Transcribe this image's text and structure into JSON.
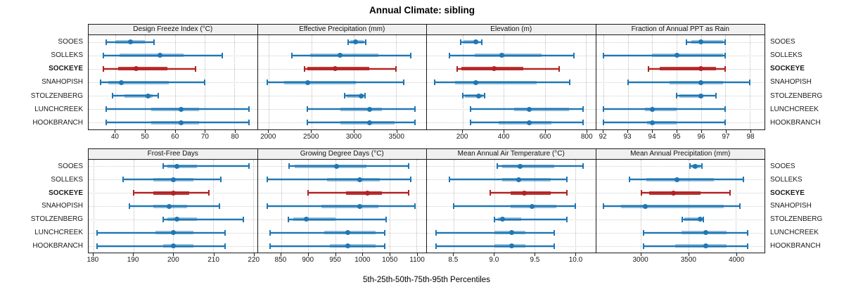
{
  "title": "Annual Climate: sibling",
  "caption": "5th-25th-50th-75th-95th Percentiles",
  "colors": {
    "blue": "#1f77b4",
    "blue_rgb": "31,119,180",
    "red": "#b22222",
    "red_rgb": "178,34,34",
    "strip_bg": "#f0f0f0",
    "border": "#1a1a1a"
  },
  "chart_data": {
    "type": "dotplot",
    "percentiles": [
      "5th",
      "25th",
      "50th",
      "75th",
      "95th"
    ],
    "sites": [
      "SOOES",
      "SOLLEKS",
      "SOCKEYE",
      "SNAHOPISH",
      "STOLZENBERG",
      "LUNCHCREEK",
      "HOOKBRANCH"
    ],
    "highlight_site": "SOCKEYE",
    "grids": [
      {
        "panels": [
          {
            "title": "Design Freeze Index (°C)",
            "range": [
              31,
              87.6
            ],
            "ticks": [
              40,
              50,
              60,
              70,
              80
            ],
            "series": [
              [
                36.8,
                40,
                45,
                50,
                53
              ],
              [
                36,
                41.5,
                55,
                63,
                76
              ],
              [
                36,
                41,
                47,
                57.5,
                67
              ],
              [
                35,
                37.5,
                42,
                58,
                70
              ],
              [
                39,
                43,
                51,
                52.5,
                54.5
              ],
              [
                37,
                52,
                62,
                68,
                85
              ],
              [
                37,
                52,
                62,
                68,
                85
              ]
            ]
          },
          {
            "title": "Effective Precipitation (mm)",
            "range": [
              1870,
              3855
            ],
            "ticks": [
              2000,
              2500,
              3000,
              3500
            ],
            "series": [
              [
                2935,
                2960,
                3025,
                3115,
                3140
              ],
              [
                2270,
                2490,
                2840,
                3295,
                3670
              ],
              [
                2425,
                2455,
                2780,
                3180,
                3500
              ],
              [
                1985,
                2180,
                2455,
                3030,
                3590
              ],
              [
                2895,
                2920,
                3090,
                3115,
                3135
              ],
              [
                2455,
                2840,
                3190,
                3330,
                3725
              ],
              [
                2455,
                2840,
                3190,
                3480,
                3725
              ]
            ]
          },
          {
            "title": "Elevation (m)",
            "range": [
              27,
              845
            ],
            "ticks": [
              200,
              400,
              600,
              800
            ],
            "series": [
              [
                190,
                205,
                265,
                278,
                295
              ],
              [
                135,
                260,
                390,
                585,
                740
              ],
              [
                175,
                195,
                352,
                495,
                668
              ],
              [
                65,
                165,
                263,
                560,
                720
              ],
              [
                200,
                212,
                278,
                296,
                307
              ],
              [
                240,
                450,
                525,
                718,
                785
              ],
              [
                240,
                375,
                525,
                632,
                785
              ]
            ]
          },
          {
            "title": "Fraction of Annual PPT as Rain",
            "range": [
              91.7,
              98.6
            ],
            "ticks": [
              92,
              93,
              94,
              95,
              96,
              97,
              98
            ],
            "series": [
              [
                95.4,
                95.6,
                96,
                96.9,
                97
              ],
              [
                92,
                94,
                95,
                96.9,
                97
              ],
              [
                93.85,
                94.3,
                96,
                96.6,
                97
              ],
              [
                93,
                94.7,
                96,
                96.9,
                98
              ],
              [
                95,
                95.1,
                96,
                96.1,
                96.6
              ],
              [
                92,
                93.7,
                94,
                95,
                97
              ],
              [
                92,
                93.8,
                94,
                95,
                97
              ]
            ]
          }
        ]
      },
      {
        "panels": [
          {
            "title": "Frost-Free Days",
            "range": [
              178.8,
              221
            ],
            "ticks": [
              180,
              190,
              200,
              210,
              220
            ],
            "series": [
              [
                197.5,
                198.5,
                201,
                206,
                219
              ],
              [
                187.5,
                195,
                200,
                205,
                212
              ],
              [
                190,
                195,
                200,
                204,
                209
              ],
              [
                189,
                195,
                199,
                203.5,
                211.5
              ],
              [
                197.5,
                198.5,
                201,
                206,
                217.5
              ],
              [
                181,
                195.5,
                200,
                205,
                213
              ],
              [
                181,
                197.5,
                200,
                205,
                213
              ]
            ]
          },
          {
            "title": "Growing Degree Days (°C)",
            "range": [
              807,
              1118
            ],
            "ticks": [
              850,
              900,
              950,
              1000,
              1050,
              1100
            ],
            "series": [
              [
                865,
                875,
                952,
                1008,
                1085
              ],
              [
                825,
                935,
                995,
                1032,
                1089
              ],
              [
                900,
                970,
                1010,
                1036,
                1085
              ],
              [
                825,
                925,
                995,
                1030,
                1097
              ],
              [
                864,
                872,
                897,
                950,
                1044
              ],
              [
                830,
                930,
                973,
                1025,
                1042
              ],
              [
                830,
                940,
                973,
                1025,
                1042
              ]
            ]
          },
          {
            "title": "Mean Annual Air Temperature (°C)",
            "range": [
              8.17,
              10.25
            ],
            "ticks": [
              8.5,
              9,
              9.5,
              10
            ],
            "tick_labels": [
              "8.5",
              "9.0",
              "9.5",
              "10.0"
            ],
            "series": [
              [
                9.04,
                9.1,
                9.32,
                9.74,
                10.1
              ],
              [
                8.45,
                9.1,
                9.3,
                9.7,
                9.9
              ],
              [
                8.95,
                9.2,
                9.37,
                9.7,
                9.9
              ],
              [
                8.5,
                9.2,
                9.47,
                9.77,
                10
              ],
              [
                9,
                9.05,
                9.1,
                9.33,
                9.9
              ],
              [
                8.28,
                9,
                9.22,
                9.39,
                9.74
              ],
              [
                8.28,
                9,
                9.22,
                9.39,
                9.74
              ]
            ]
          },
          {
            "title": "Mean Annual Precipitation (mm)",
            "range": [
              2530,
              4300
            ],
            "ticks": [
              3000,
              3500,
              4000
            ],
            "series": [
              [
                3515,
                3530,
                3570,
                3625,
                3645
              ],
              [
                2880,
                3060,
                3380,
                3765,
                4080
              ],
              [
                3010,
                3090,
                3340,
                3630,
                3935
              ],
              [
                2610,
                2790,
                3050,
                3875,
                4040
              ],
              [
                3435,
                3460,
                3625,
                3645,
                3655
              ],
              [
                3030,
                3425,
                3685,
                3900,
                4120
              ],
              [
                3030,
                3360,
                3685,
                3900,
                4120
              ]
            ]
          }
        ]
      }
    ]
  }
}
